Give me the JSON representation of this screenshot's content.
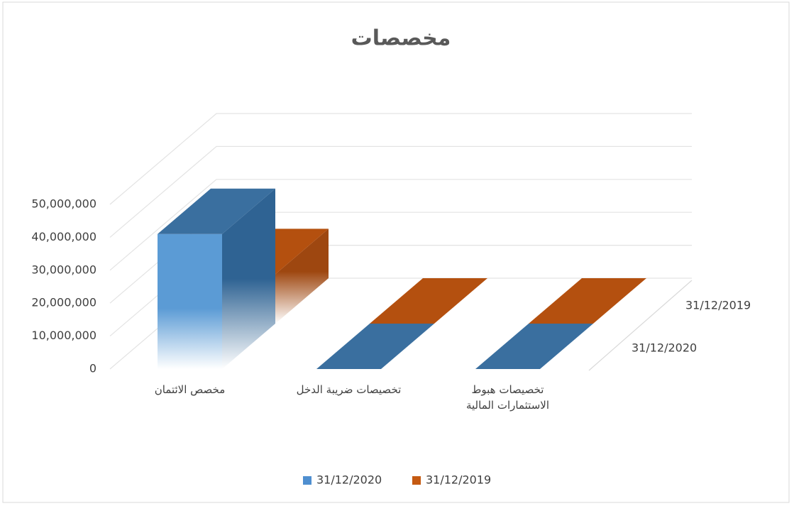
{
  "chart_data": {
    "type": "bar3d",
    "title": "مخصصات",
    "categories": [
      "مخصص الائتمان",
      "تخصيصات ضريبة الدخل",
      "تخصيصات هبوط\nالاستثمارات المالية"
    ],
    "series": [
      {
        "name": "31/12/2020",
        "color": "#4f8fd0",
        "values": [
          41000000,
          0,
          0
        ]
      },
      {
        "name": "31/12/2019",
        "color": "#c55a11",
        "values": [
          15000000,
          0,
          0
        ]
      }
    ],
    "ylim": [
      0,
      50000000
    ],
    "yticks": [
      0,
      {
        "value": 10000000,
        "label": "10,000,000"
      },
      {
        "value": 20000000,
        "label": "20,000,000"
      },
      {
        "value": 30000000,
        "label": "30,000,000"
      },
      {
        "value": 40000000,
        "label": "40,000,000"
      },
      {
        "value": 50000000,
        "label": "50,000,000"
      }
    ],
    "grid": true,
    "legend": "bottom"
  }
}
